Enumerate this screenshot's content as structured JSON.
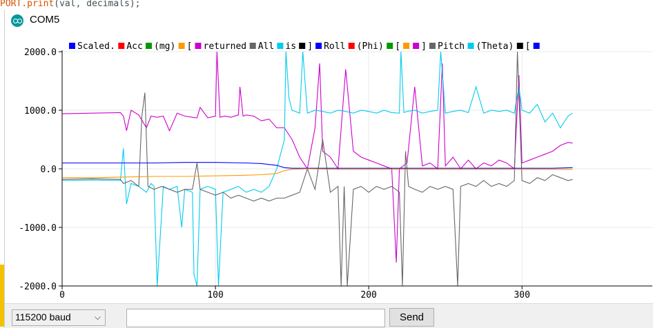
{
  "background": {
    "code_fragment_keyword": "PORT.",
    "code_fragment_fn": "print",
    "code_fragment_rest": "(val, decimals);"
  },
  "window": {
    "title": "COM5"
  },
  "controls": {
    "baud_value": "115200 baud",
    "input_value": "",
    "send_label": "Send"
  },
  "legend": [
    {
      "label": "Scaled.",
      "color": "#0000ff"
    },
    {
      "label": "Acc",
      "color": "#ff0000"
    },
    {
      "label": "(mg)",
      "color": "#009900"
    },
    {
      "label": "[",
      "color": "#ff9900"
    },
    {
      "label": "returned",
      "color": "#cc00cc"
    },
    {
      "label": "All",
      "color": "#666666"
    },
    {
      "label": "is",
      "color": "#00ccee"
    },
    {
      "label": "]",
      "color": "#000000"
    },
    {
      "label": "Roll",
      "color": "#0000ff"
    },
    {
      "label": "(Phi)",
      "color": "#ff0000"
    },
    {
      "label": "[",
      "color": "#009900"
    },
    {
      "label": "",
      "color": "#ff9900"
    },
    {
      "label": "]",
      "color": "#cc00cc"
    },
    {
      "label": "Pitch",
      "color": "#666666"
    },
    {
      "label": "(Theta)",
      "color": "#00ccee"
    },
    {
      "label": "[",
      "color": "#000000"
    },
    {
      "label": "",
      "color": "#0000ff"
    }
  ],
  "chart_data": {
    "type": "line",
    "x_ticks": [
      "0",
      "100",
      "200",
      "300"
    ],
    "y_ticks": [
      "2000.0",
      "1000.0",
      "0.0",
      "-1000.0",
      "-2000.0"
    ],
    "xlim": [
      0,
      385
    ],
    "ylim": [
      -2000,
      2000
    ],
    "grid": true,
    "legend_position": "top",
    "series": [
      {
        "color": "#cc00cc",
        "x": [
          0,
          20,
          38,
          40,
          42,
          45,
          50,
          55,
          58,
          62,
          66,
          70,
          75,
          80,
          85,
          88,
          90,
          95,
          100,
          101,
          103,
          106,
          110,
          115,
          116,
          118,
          120,
          125,
          130,
          135,
          140,
          145,
          150,
          155,
          160,
          165,
          168,
          170,
          175,
          180,
          185,
          190,
          195,
          200,
          205,
          210,
          215,
          218,
          220,
          225,
          230,
          235,
          240,
          245,
          248,
          250,
          255,
          260,
          265,
          270,
          275,
          280,
          285,
          290,
          295,
          298,
          300,
          305,
          310,
          315,
          320,
          325,
          330,
          333
        ],
        "y": [
          940,
          950,
          960,
          900,
          650,
          1000,
          920,
          700,
          900,
          880,
          900,
          650,
          950,
          900,
          880,
          870,
          1050,
          870,
          900,
          2000,
          880,
          900,
          880,
          920,
          1400,
          900,
          920,
          900,
          820,
          850,
          700,
          700,
          500,
          200,
          0,
          700,
          1800,
          300,
          200,
          0,
          1700,
          300,
          200,
          150,
          100,
          50,
          0,
          -1600,
          0,
          100,
          1400,
          50,
          100,
          0,
          1800,
          50,
          200,
          0,
          150,
          0,
          100,
          50,
          150,
          100,
          0,
          1600,
          100,
          150,
          200,
          250,
          300,
          400,
          450,
          440
        ]
      },
      {
        "color": "#00ccee",
        "x": [
          0,
          20,
          38,
          40,
          42,
          45,
          50,
          55,
          58,
          60,
          62,
          66,
          70,
          75,
          78,
          80,
          85,
          86,
          88,
          90,
          95,
          100,
          102,
          105,
          110,
          115,
          120,
          125,
          130,
          135,
          140,
          145,
          146,
          148,
          150,
          155,
          157,
          160,
          165,
          170,
          175,
          180,
          185,
          190,
          195,
          200,
          205,
          210,
          215,
          220,
          221,
          223,
          225,
          230,
          235,
          240,
          245,
          247,
          250,
          255,
          260,
          265,
          270,
          275,
          280,
          285,
          290,
          295,
          298,
          300,
          305,
          310,
          315,
          320,
          325,
          330,
          333
        ],
        "y": [
          -200,
          -190,
          -200,
          350,
          -600,
          -250,
          -300,
          -400,
          -250,
          -300,
          -2000,
          -300,
          -350,
          -300,
          -1000,
          -350,
          -400,
          -1800,
          -2000,
          -350,
          -300,
          -350,
          -2000,
          -400,
          -350,
          -300,
          -400,
          -350,
          -400,
          -300,
          0,
          500,
          2000,
          1200,
          1000,
          950,
          2000,
          950,
          1000,
          980,
          950,
          1000,
          980,
          950,
          1000,
          980,
          950,
          1000,
          960,
          950,
          2000,
          960,
          980,
          1000,
          950,
          980,
          1000,
          2000,
          950,
          980,
          1000,
          960,
          1400,
          950,
          1000,
          980,
          1000,
          950,
          1400,
          1000,
          950,
          1100,
          800,
          950,
          700,
          900,
          950
        ]
      },
      {
        "color": "#666666",
        "x": [
          0,
          20,
          38,
          40,
          45,
          50,
          52,
          54,
          56,
          60,
          65,
          70,
          75,
          80,
          85,
          88,
          90,
          95,
          100,
          105,
          110,
          115,
          120,
          125,
          130,
          135,
          140,
          145,
          150,
          155,
          160,
          165,
          170,
          175,
          180,
          182,
          184,
          186,
          190,
          195,
          200,
          205,
          210,
          215,
          220,
          222,
          224,
          226,
          230,
          235,
          240,
          245,
          250,
          255,
          258,
          260,
          265,
          270,
          275,
          280,
          285,
          290,
          295,
          297,
          300,
          305,
          310,
          315,
          320,
          325,
          330,
          333
        ],
        "y": [
          -180,
          -170,
          -180,
          -250,
          -200,
          -300,
          900,
          1300,
          -300,
          -350,
          -300,
          -350,
          -400,
          -350,
          -350,
          100,
          -350,
          -400,
          -450,
          -400,
          -500,
          -450,
          -500,
          -550,
          -500,
          -550,
          -500,
          -500,
          -450,
          -400,
          0,
          -350,
          500,
          -400,
          -300,
          -2000,
          -300,
          -2000,
          -350,
          -300,
          -400,
          -300,
          -350,
          -300,
          -400,
          -2000,
          300,
          -300,
          -350,
          -400,
          -300,
          -350,
          -300,
          -350,
          -2000,
          -300,
          -250,
          -300,
          -200,
          -300,
          -250,
          -300,
          -200,
          2000,
          -200,
          -250,
          -150,
          -200,
          -100,
          -150,
          -200,
          -180
        ]
      },
      {
        "color": "#0000ff",
        "x": [
          0,
          20,
          40,
          60,
          80,
          100,
          120,
          130,
          140,
          145,
          150,
          160,
          180,
          200,
          220,
          240,
          260,
          280,
          300,
          320,
          333
        ],
        "y": [
          100,
          100,
          100,
          100,
          110,
          110,
          100,
          90,
          60,
          20,
          10,
          10,
          10,
          10,
          10,
          10,
          10,
          10,
          10,
          10,
          20
        ]
      },
      {
        "color": "#ff9900",
        "x": [
          0,
          20,
          40,
          60,
          80,
          100,
          120,
          130,
          140,
          145,
          150,
          160,
          180,
          200,
          220,
          240,
          260,
          280,
          300,
          320,
          333
        ],
        "y": [
          -150,
          -150,
          -140,
          -130,
          -130,
          -120,
          -110,
          -100,
          -80,
          -30,
          -10,
          0,
          -10,
          -10,
          -10,
          -10,
          -10,
          -10,
          -10,
          -10,
          -10
        ]
      }
    ]
  }
}
